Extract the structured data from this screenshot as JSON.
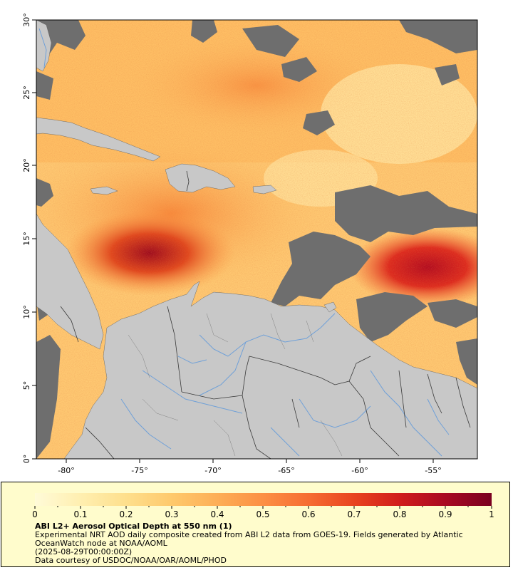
{
  "map": {
    "lat_ticks": [
      "0°",
      "5°",
      "10°",
      "15°",
      "20°",
      "25°",
      "30°"
    ],
    "lon_ticks": [
      "-80°",
      "-75°",
      "-70°",
      "-65°",
      "-60°",
      "-55°"
    ],
    "colors": {
      "land": "#c8c8c8",
      "no_data": "#6e6e6e",
      "rivers": "#6fa0d8",
      "borders": "#3a3a3a"
    }
  },
  "legend": {
    "colorbar_ticks": [
      "0",
      "0.1",
      "0.2",
      "0.3",
      "0.4",
      "0.5",
      "0.6",
      "0.7",
      "0.8",
      "0.9",
      "1"
    ],
    "colors": [
      "#fff7c8",
      "#ffe79a",
      "#fec66a",
      "#fd9b45",
      "#f46830",
      "#dd2b1f",
      "#b50d25",
      "#80021f"
    ],
    "title": "ABI L2+ Aerosol Optical Depth at 550 nm (1)",
    "description": "Experimental NRT AOD daily composite created from ABI L2 data from GOES-19. Fields generated by Atlantic OceanWatch node at NOAA/AOML",
    "date": "(2025-08-29T00:00:00Z)",
    "credit": "Data courtesy of USDOC/NOAA/OAR/AOML/PHOD"
  }
}
